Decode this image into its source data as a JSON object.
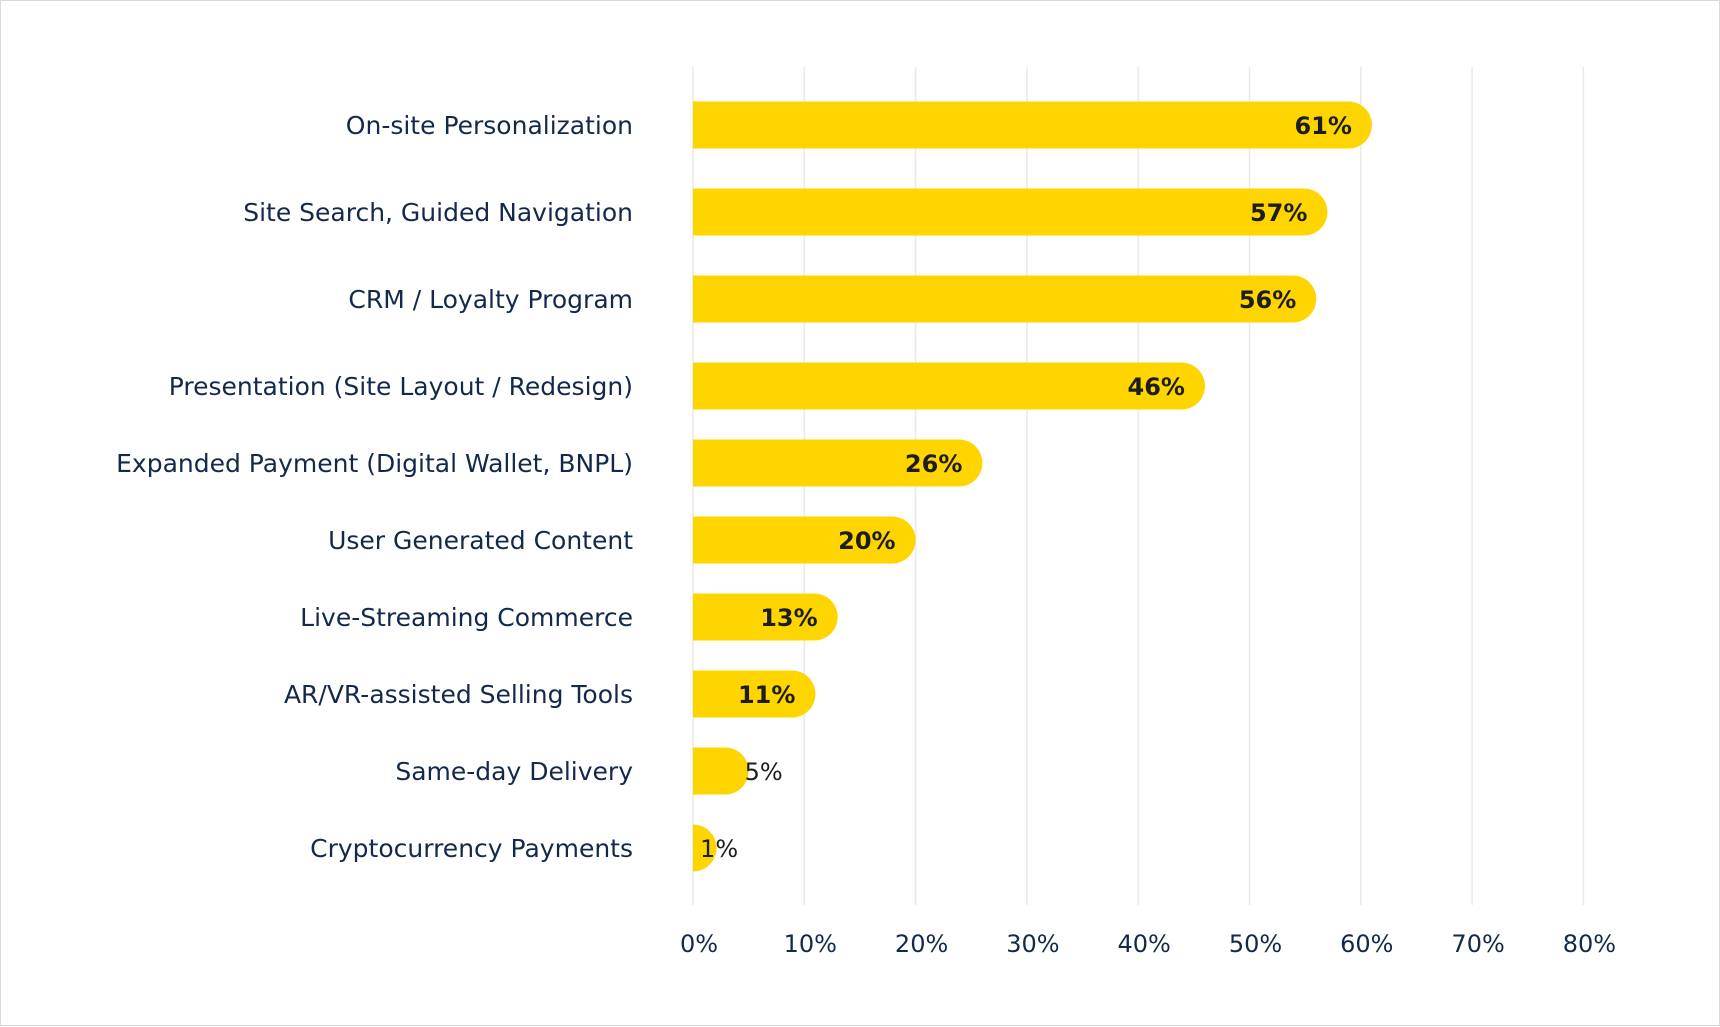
{
  "colors": {
    "bar": "#ffd500",
    "grid": "#e9e9e9",
    "label_text": "#13294b",
    "value_text": "#1d1d1d"
  },
  "chart_data": {
    "type": "bar",
    "orientation": "horizontal",
    "title": "",
    "xlabel": "",
    "ylabel": "",
    "categories": [
      "On-site Personalization",
      "Site Search, Guided Navigation",
      "CRM / Loyalty Program",
      "Presentation (Site Layout / Redesign)",
      "Expanded Payment (Digital Wallet, BNPL)",
      "User Generated Content",
      "Live-Streaming Commerce",
      "AR/VR-assisted Selling Tools",
      "Same-day Delivery",
      "Cryptocurrency Payments"
    ],
    "values": [
      61,
      57,
      56,
      46,
      26,
      20,
      13,
      11,
      5,
      1
    ],
    "value_labels": [
      "61%",
      "57%",
      "56%",
      "46%",
      "26%",
      "20%",
      "13%",
      "11%",
      "5%",
      "1%"
    ],
    "xlim": [
      0,
      80
    ],
    "x_ticks": [
      0,
      10,
      20,
      30,
      40,
      50,
      60,
      70,
      80
    ],
    "x_tick_labels": [
      "0%",
      "10%",
      "20%",
      "30%",
      "40%",
      "50%",
      "60%",
      "70%",
      "80%"
    ],
    "grid": true,
    "legend": "none"
  }
}
